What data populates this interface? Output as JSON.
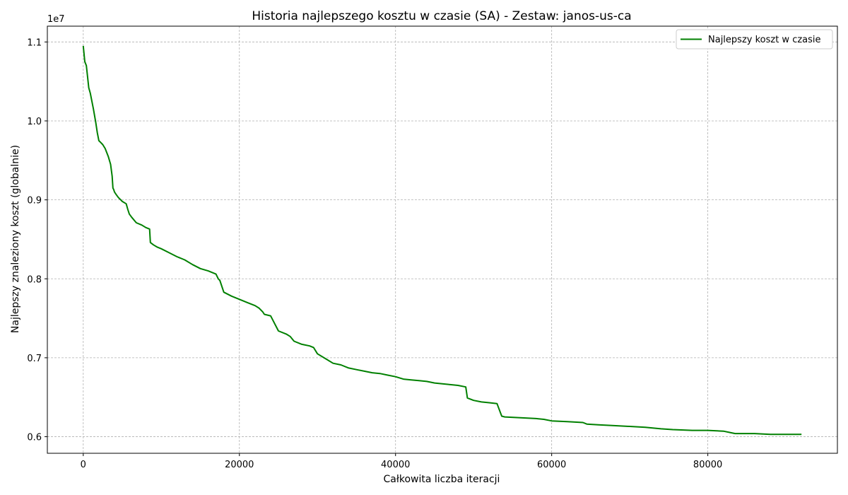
{
  "chart_data": {
    "type": "line",
    "title": "Historia najlepszego kosztu w czasie (SA) - Zestaw: janos-us-ca",
    "xlabel": "Całkowita liczba iteracji",
    "ylabel": "Najlepszy znaleziony koszt (globalnie)",
    "y_offset_label": "1e7",
    "xlim": [
      -4600,
      96600
    ],
    "ylim": [
      5.79,
      11.2
    ],
    "x_ticks": [
      0,
      20000,
      40000,
      60000,
      80000
    ],
    "x_tick_labels": [
      "0",
      "20000",
      "40000",
      "60000",
      "80000"
    ],
    "y_ticks": [
      6.0,
      7.0,
      8.0,
      9.0,
      10.0,
      11.0
    ],
    "y_tick_labels": [
      "0.6",
      "0.7",
      "0.8",
      "0.9",
      "1.0",
      "1.1"
    ],
    "grid": true,
    "legend_position": "top-right",
    "series": [
      {
        "name": "Najlepszy koszt w czasie",
        "color": "#008000",
        "x": [
          0,
          200,
          400,
          700,
          900,
          1100,
          1300,
          1600,
          1800,
          2000,
          2200,
          2500,
          2800,
          3200,
          3500,
          3700,
          3800,
          3900,
          4000,
          4200,
          4500,
          4800,
          5000,
          5500,
          5700,
          5900,
          6200,
          6800,
          7500,
          8000,
          8500,
          8600,
          9000,
          9500,
          10000,
          11000,
          12000,
          13000,
          14000,
          15000,
          16000,
          16500,
          17000,
          17300,
          17500,
          18000,
          19000,
          20000,
          21000,
          22000,
          22500,
          23000,
          23200,
          24000,
          25000,
          26000,
          26500,
          27000,
          28000,
          29000,
          29500,
          30000,
          31000,
          32000,
          33000,
          34000,
          35000,
          36000,
          37000,
          38000,
          39000,
          40000,
          41000,
          42000,
          43000,
          44000,
          45000,
          46000,
          47000,
          48000,
          49000,
          49200,
          50000,
          51000,
          52000,
          53000,
          53600,
          54000,
          56000,
          58000,
          59000,
          60000,
          62000,
          64000,
          64500,
          66000,
          68000,
          70000,
          72000,
          74000,
          75500,
          78000,
          80000,
          82000,
          83000,
          83500,
          84000,
          86000,
          88000,
          90000,
          92000
        ],
        "y": [
          10.95,
          10.75,
          10.7,
          10.42,
          10.35,
          10.25,
          10.15,
          9.98,
          9.85,
          9.75,
          9.73,
          9.7,
          9.65,
          9.55,
          9.45,
          9.3,
          9.15,
          9.13,
          9.1,
          9.07,
          9.03,
          9.0,
          8.98,
          8.95,
          8.88,
          8.82,
          8.78,
          8.71,
          8.68,
          8.65,
          8.63,
          8.46,
          8.43,
          8.4,
          8.38,
          8.33,
          8.28,
          8.24,
          8.18,
          8.13,
          8.1,
          8.08,
          8.06,
          8.0,
          7.98,
          7.83,
          7.78,
          7.74,
          7.7,
          7.66,
          7.63,
          7.58,
          7.55,
          7.53,
          7.34,
          7.3,
          7.27,
          7.21,
          7.17,
          7.15,
          7.13,
          7.05,
          6.99,
          6.93,
          6.91,
          6.87,
          6.85,
          6.83,
          6.81,
          6.8,
          6.78,
          6.76,
          6.73,
          6.72,
          6.71,
          6.7,
          6.68,
          6.67,
          6.66,
          6.65,
          6.63,
          6.49,
          6.46,
          6.44,
          6.43,
          6.42,
          6.26,
          6.25,
          6.24,
          6.23,
          6.22,
          6.2,
          6.19,
          6.18,
          6.16,
          6.15,
          6.14,
          6.13,
          6.12,
          6.1,
          6.09,
          6.08,
          6.08,
          6.07,
          6.05,
          6.04,
          6.04,
          6.04,
          6.03,
          6.03,
          6.03
        ]
      }
    ]
  }
}
